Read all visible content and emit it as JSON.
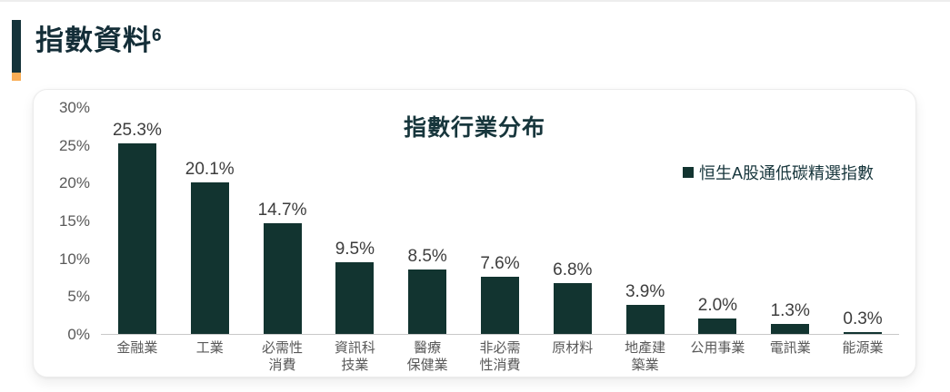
{
  "page": {
    "heading": "指數資料",
    "heading_footnote": "6"
  },
  "chart_data": {
    "type": "bar",
    "title": "指數行業分布",
    "legend": {
      "label": "恒生A股通低碳精選指數",
      "position": "top-right",
      "marker": "square"
    },
    "categories": [
      "金融業",
      "工業",
      "必需性消費",
      "資訊科技業",
      "醫療保健業",
      "非必需性消費",
      "原材料",
      "地產建築業",
      "公用事業",
      "電訊業",
      "能源業"
    ],
    "tick_lines": [
      [
        "金融業"
      ],
      [
        "工業"
      ],
      [
        "必需性",
        "消費"
      ],
      [
        "資訊科",
        "技業"
      ],
      [
        "醫療",
        "保健業"
      ],
      [
        "非必需",
        "性消費"
      ],
      [
        "原材料"
      ],
      [
        "地產建",
        "築業"
      ],
      [
        "公用事業"
      ],
      [
        "電訊業"
      ],
      [
        "能源業"
      ]
    ],
    "values": [
      25.3,
      20.1,
      14.7,
      9.5,
      8.5,
      7.6,
      6.8,
      3.9,
      2.0,
      1.3,
      0.3
    ],
    "data_labels": [
      "25.3%",
      "20.1%",
      "14.7%",
      "9.5%",
      "8.5%",
      "7.6%",
      "6.8%",
      "3.9%",
      "2.0%",
      "1.3%",
      "0.3%"
    ],
    "series": [
      {
        "name": "恒生A股通低碳精選指數",
        "values": [
          25.3,
          20.1,
          14.7,
          9.5,
          8.5,
          7.6,
          6.8,
          3.9,
          2.0,
          1.3,
          0.3
        ]
      }
    ],
    "xlabel": "",
    "ylabel": "",
    "ylim": [
      0,
      30
    ],
    "ytick_labels": [
      "0%",
      "5%",
      "10%",
      "15%",
      "20%",
      "25%",
      "30%"
    ],
    "grid": false,
    "colors": {
      "bar": "#123430",
      "title_text": "#17363c",
      "axis_text": "#595959",
      "data_label_text": "#3d3d3d",
      "accent_dark": "#14333a",
      "accent_orange": "#f9ad55"
    }
  }
}
